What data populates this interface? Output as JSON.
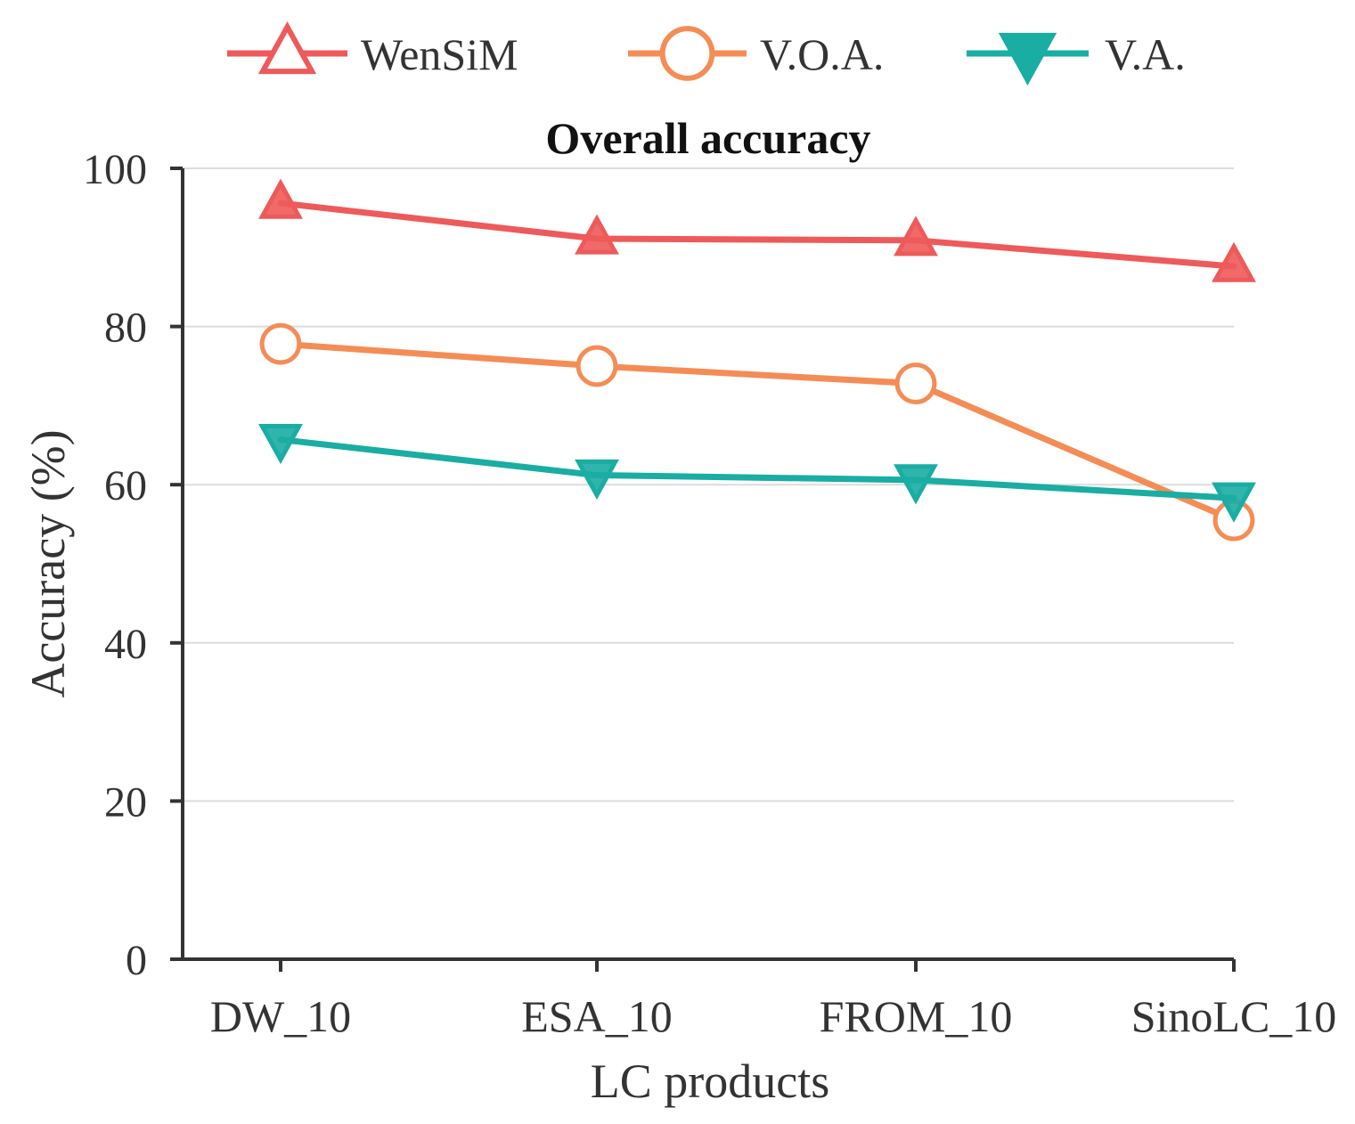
{
  "chart_data": {
    "type": "line",
    "title": "Overall accuracy",
    "xlabel": "LC products",
    "ylabel": "Accuracy (%)",
    "categories": [
      "DW_10",
      "ESA_10",
      "FROM_10",
      "SinoLC_10"
    ],
    "ylim": [
      0,
      100
    ],
    "yticks": [
      0,
      20,
      40,
      60,
      80,
      100
    ],
    "grid": true,
    "legend_position": "top",
    "series": [
      {
        "name": "WenSiM",
        "values": [
          95.6,
          91.1,
          90.9,
          87.6
        ],
        "color": "#ee5a5a",
        "marker": "triangle-up"
      },
      {
        "name": "V.O.A.",
        "values": [
          77.8,
          75.0,
          72.8,
          55.5
        ],
        "color": "#f48d55",
        "marker": "circle"
      },
      {
        "name": "V.A.",
        "values": [
          65.7,
          61.2,
          60.6,
          58.3
        ],
        "color": "#19ada4",
        "marker": "triangle-down"
      }
    ]
  }
}
